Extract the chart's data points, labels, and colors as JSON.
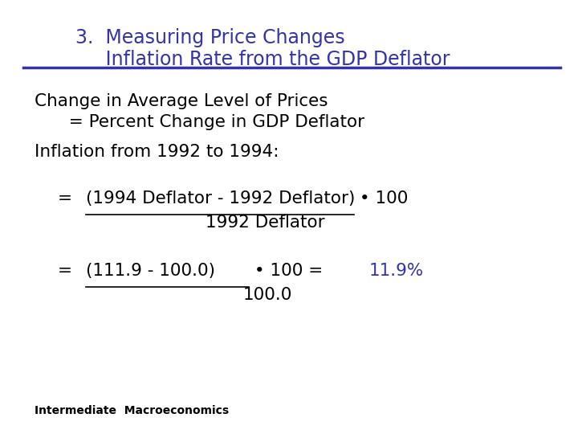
{
  "title_line1": "3.  Measuring Price Changes",
  "title_line2": "     Inflation Rate from the GDP Deflator",
  "title_color": "#3333aa",
  "line_color": "#3333aa",
  "body_color": "#000000",
  "highlight_color": "#3333aa",
  "bg_color": "#ffffff",
  "line1": "Change in Average Level of Prices",
  "line2": "  = Percent Change in GDP Deflator",
  "line3": "Inflation from 1992 to 1994:",
  "line4_eq": "= ",
  "line4_underline": "(1994 Deflator - 1992 Deflator)",
  "line4_rest": " • 100",
  "line5": "1992 Deflator",
  "line6_eq": "= ",
  "line6_underline": "(111.9 - 100.0)",
  "line6_rest": " • 100 = ",
  "line6_result": "11.9%",
  "line7": "100.0",
  "footer": "Intermediate  Macroeconomics",
  "footer_bold": true
}
